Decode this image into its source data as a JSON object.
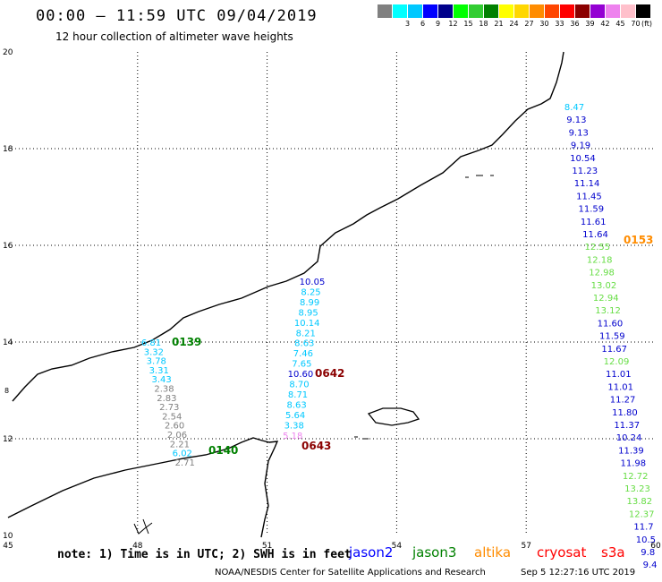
{
  "header": {
    "title": "00:00 – 11:59 UTC 09/04/2019",
    "subtitle": "12 hour collection of altimeter wave heights"
  },
  "colorbar": {
    "unit": "(ft)",
    "labels": [
      "",
      "3",
      "6",
      "9",
      "12",
      "15",
      "18",
      "21",
      "24",
      "27",
      "30",
      "33",
      "36",
      "39",
      "42",
      "45",
      "70"
    ],
    "colors": [
      "#808080",
      "#00ffff",
      "#00c8ff",
      "#0000ff",
      "#00008b",
      "#00ff00",
      "#32cd32",
      "#008000",
      "#ffff00",
      "#ffd700",
      "#ff8c00",
      "#ff4500",
      "#ff0000",
      "#8b0000",
      "#9400d3",
      "#ee82ee",
      "#ffc0cb",
      "#000000"
    ]
  },
  "axes": {
    "x_ticks": [
      "45",
      "48",
      "51",
      "54",
      "57",
      "60"
    ],
    "y_ticks": [
      "20",
      "18",
      "16",
      "14",
      "12",
      "10"
    ],
    "y_minor": "8"
  },
  "passes": [
    {
      "label": "0153",
      "color": "#ff8c00"
    },
    {
      "label": "0139",
      "color": "#008000"
    },
    {
      "label": "0642",
      "color": "#8b0000"
    },
    {
      "label": "0140",
      "color": "#008000"
    },
    {
      "label": "0643",
      "color": "#8b0000"
    }
  ],
  "tracks": {
    "east": {
      "values": [
        "8.47",
        "9.13",
        "9.13",
        "9.19",
        "10.54",
        "11.23",
        "11.14",
        "11.45",
        "11.59",
        "11.61",
        "11.64",
        "12.55",
        "12.18",
        "12.98",
        "13.02",
        "12.94",
        "13.12",
        "11.60",
        "11.59",
        "11.67",
        "12.09",
        "11.01",
        "11.01",
        "11.27",
        "11.80",
        "11.37",
        "10.24",
        "11.39",
        "11.98",
        "12.72",
        "13.23",
        "13.82",
        "12.37",
        "11.7",
        "10.5",
        "9.8",
        "9.4"
      ],
      "colors": [
        "#00c8ff",
        "#0000cd",
        "#0000cd",
        "#0000cd",
        "#0000cd",
        "#0000cd",
        "#0000cd",
        "#0000cd",
        "#0000cd",
        "#0000cd",
        "#0000cd",
        "#66dd44",
        "#66dd44",
        "#66dd44",
        "#66dd44",
        "#66dd44",
        "#66dd44",
        "#0000cd",
        "#0000cd",
        "#0000cd",
        "#66dd44",
        "#0000cd",
        "#0000cd",
        "#0000cd",
        "#0000cd",
        "#0000cd",
        "#0000cd",
        "#0000cd",
        "#0000cd",
        "#66dd44",
        "#66dd44",
        "#66dd44",
        "#66dd44",
        "#0000cd",
        "#0000cd",
        "#0000cd",
        "#0000cd"
      ]
    },
    "middle": {
      "values": [
        "10.05",
        "8.25",
        "8.99",
        "8.95",
        "10.14",
        "8.21",
        "8.63",
        "7.46",
        "7.65",
        "10.60",
        "8.70",
        "8.71",
        "8.63",
        "5.64",
        "3.38",
        "5.18"
      ],
      "colors": [
        "#0000cd",
        "#00c8ff",
        "#00c8ff",
        "#00c8ff",
        "#00c8ff",
        "#00c8ff",
        "#00c8ff",
        "#00c8ff",
        "#00c8ff",
        "#0000cd",
        "#00c8ff",
        "#00c8ff",
        "#00c8ff",
        "#00c8ff",
        "#00c8ff",
        "#ee82ee"
      ]
    },
    "west": {
      "values": [
        "6.81",
        "3.32",
        "3.78",
        "3.31",
        "3.43",
        "2.38",
        "2.83",
        "2.73",
        "2.54",
        "2.60",
        "2.06",
        "2.21",
        "6.02",
        "2.71"
      ],
      "colors": [
        "#00c8ff",
        "#00c8ff",
        "#00c8ff",
        "#00c8ff",
        "#00c8ff",
        "#808080",
        "#808080",
        "#808080",
        "#808080",
        "#808080",
        "#808080",
        "#808080",
        "#00c8ff",
        "#808080"
      ]
    }
  },
  "footer": {
    "note": "note:  1) Time is in UTC;  2) SWH is in feet",
    "satellites": [
      {
        "name": "jason2",
        "color": "#0000ff"
      },
      {
        "name": "jason3",
        "color": "#008000"
      },
      {
        "name": "altika",
        "color": "#ff8c00"
      },
      {
        "name": "cryosat",
        "color": "#ff0000"
      },
      {
        "name": "s3a",
        "color": "#ff0000"
      }
    ],
    "credit": "NOAA/NESDIS Center for Satellite Applications and Research",
    "timestamp": "Sep  5 12:27:16 UTC 2019"
  }
}
